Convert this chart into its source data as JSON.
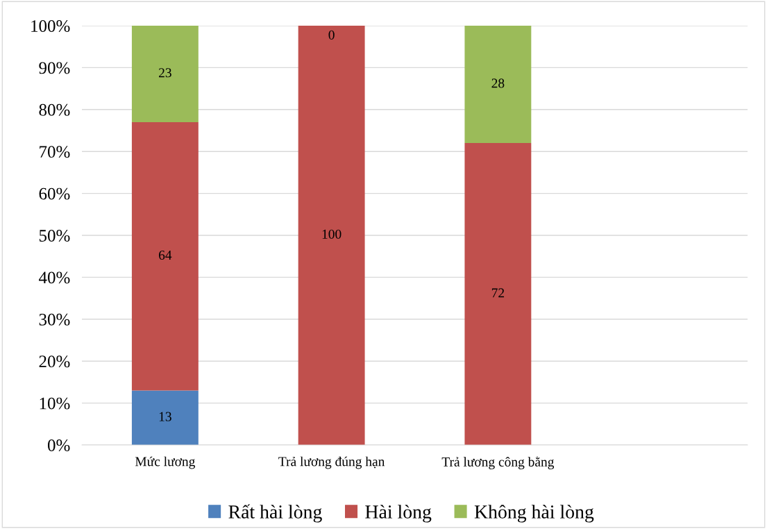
{
  "chart_data": {
    "type": "bar",
    "stacked": true,
    "categories": [
      "Mức lương",
      "Trả lương đúng hạn",
      "Trả lương công bằng",
      null
    ],
    "series": [
      {
        "name": "Rất hài lòng",
        "color": "#4f81bd",
        "values": [
          13,
          0,
          0,
          null
        ],
        "value_labels": [
          "13",
          null,
          null,
          null
        ]
      },
      {
        "name": "Hài lòng",
        "color": "#c0504d",
        "values": [
          64,
          100,
          72,
          null
        ],
        "value_labels": [
          "64",
          "100",
          "72",
          null
        ]
      },
      {
        "name": "Không hài lòng",
        "color": "#9bbb59",
        "values": [
          23,
          0,
          28,
          null
        ],
        "value_labels": [
          "23",
          "0",
          "28",
          null
        ]
      }
    ],
    "ylim": [
      0,
      100
    ],
    "yticks": [
      {
        "value": 0,
        "label": "0%"
      },
      {
        "value": 10,
        "label": "10%"
      },
      {
        "value": 20,
        "label": "20%"
      },
      {
        "value": 30,
        "label": "30%"
      },
      {
        "value": 40,
        "label": "40%"
      },
      {
        "value": 50,
        "label": "50%"
      },
      {
        "value": 60,
        "label": "60%"
      },
      {
        "value": 70,
        "label": "70%"
      },
      {
        "value": 80,
        "label": "80%"
      },
      {
        "value": 90,
        "label": "90%"
      },
      {
        "value": 100,
        "label": "100%"
      }
    ],
    "grid": "y",
    "legend": "bottom"
  }
}
